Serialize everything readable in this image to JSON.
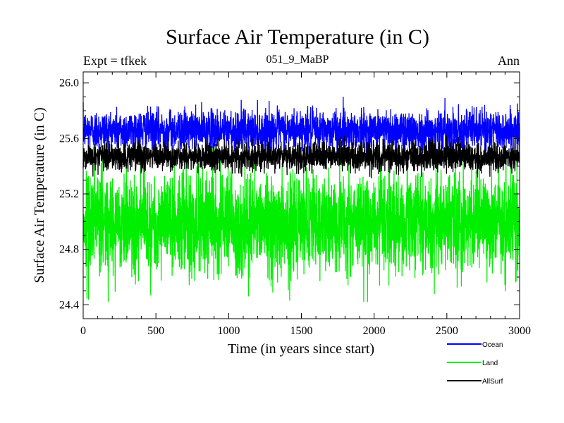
{
  "chart_data": {
    "type": "line",
    "title": "Surface Air Temperature (in C)",
    "subtitle_left": "Expt = tfkek",
    "subtitle_center": "051_9_MaBP",
    "subtitle_right": "Ann",
    "xlabel": "Time (in years since start)",
    "ylabel": "Surface Air Temperature (in C)",
    "xlim": [
      0,
      3000
    ],
    "ylim": [
      24.3,
      26.08
    ],
    "xticks": [
      0,
      500,
      1000,
      1500,
      2000,
      2500,
      3000
    ],
    "xtick_labels": [
      "0",
      "500",
      "1000",
      "1500",
      "2000",
      "2500",
      "3000"
    ],
    "yticks": [
      24.4,
      24.8,
      25.2,
      25.6,
      26.0
    ],
    "ytick_labels": [
      "24.4",
      "24.8",
      "25.2",
      "25.6",
      "26.0"
    ],
    "grid": false,
    "legend_position": "bottom-right",
    "series": [
      {
        "name": "Ocean",
        "color": "#0000ff",
        "mean": 25.66,
        "noise_range": [
          25.45,
          25.9
        ],
        "n_points": 3000
      },
      {
        "name": "Land",
        "color": "#00ee00",
        "mean": 25.0,
        "noise_range": [
          24.42,
          25.55
        ],
        "n_points": 3000
      },
      {
        "name": "AllSurf",
        "color": "#000000",
        "mean": 25.47,
        "noise_range": [
          25.3,
          25.62
        ],
        "n_points": 3000
      }
    ]
  }
}
